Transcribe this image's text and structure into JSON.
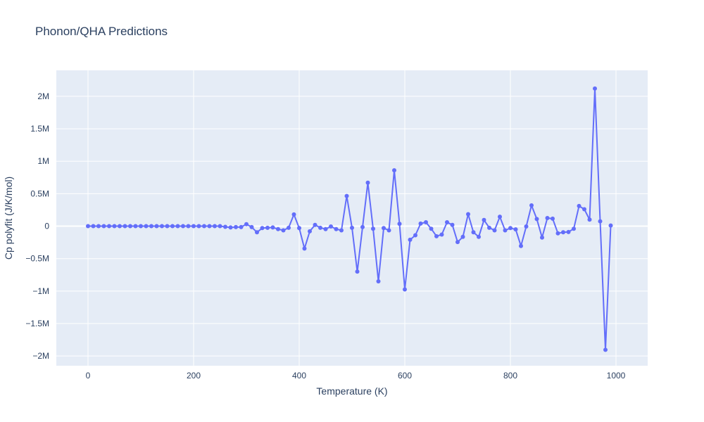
{
  "chart_data": {
    "type": "line",
    "title": "Phonon/QHA Predictions",
    "xlabel": "Temperature (K)",
    "ylabel": "Cp polyfit (J/K/mol)",
    "xlim": [
      -60,
      1060
    ],
    "ylim": [
      -2150000,
      2400000
    ],
    "x_ticks": [
      0,
      200,
      400,
      600,
      800,
      1000
    ],
    "x_tick_labels": [
      "0",
      "200",
      "400",
      "600",
      "800",
      "1000"
    ],
    "y_ticks": [
      -2000000,
      -1500000,
      -1000000,
      -500000,
      0,
      500000,
      1000000,
      1500000,
      2000000
    ],
    "y_tick_labels": [
      "−2M",
      "−1.5M",
      "−1M",
      "−0.5M",
      "0",
      "0.5M",
      "1M",
      "1.5M",
      "2M"
    ],
    "grid": true,
    "marker": "circle",
    "colors": {
      "plot_bg": "#e5ecf6",
      "grid": "#ffffff",
      "line": "#636efa",
      "text": "#2a3f5f"
    },
    "series": [
      {
        "x": [
          0,
          10,
          20,
          30,
          40,
          50,
          60,
          70,
          80,
          90,
          100,
          110,
          120,
          130,
          140,
          150,
          160,
          170,
          180,
          190,
          200,
          210,
          220,
          230,
          240,
          250,
          260,
          270,
          280,
          290,
          300,
          310,
          320,
          330,
          340,
          350,
          360,
          370,
          380,
          390,
          400,
          410,
          420,
          430,
          440,
          450,
          460,
          470,
          480,
          490,
          500,
          510,
          520,
          530,
          540,
          550,
          560,
          570,
          580,
          590,
          600,
          610,
          620,
          630,
          640,
          650,
          660,
          670,
          680,
          690,
          700,
          710,
          720,
          730,
          740,
          750,
          760,
          770,
          780,
          790,
          800,
          810,
          820,
          830,
          840,
          850,
          860,
          870,
          880,
          890,
          900,
          910,
          920,
          930,
          940,
          950,
          960,
          970,
          980,
          990
        ],
        "values": [
          0,
          0,
          0,
          0,
          0,
          0,
          0,
          0,
          0,
          0,
          0,
          0,
          0,
          0,
          0,
          0,
          0,
          0,
          0,
          0,
          0,
          0,
          0,
          0,
          0,
          0,
          -10000,
          -20000,
          -15000,
          -15000,
          30000,
          -15000,
          -95000,
          -30000,
          -25000,
          -20000,
          -45000,
          -65000,
          -25000,
          180000,
          -30000,
          -345000,
          -80000,
          20000,
          -25000,
          -45000,
          -5000,
          -45000,
          -65000,
          465000,
          -25000,
          -700000,
          -15000,
          670000,
          -40000,
          -850000,
          -30000,
          -65000,
          860000,
          35000,
          -975000,
          -210000,
          -140000,
          40000,
          60000,
          -40000,
          -155000,
          -130000,
          60000,
          20000,
          -245000,
          -165000,
          185000,
          -95000,
          -165000,
          95000,
          -25000,
          -65000,
          145000,
          -65000,
          -30000,
          -50000,
          -305000,
          -5000,
          320000,
          110000,
          -175000,
          125000,
          115000,
          -110000,
          -95000,
          -90000,
          -40000,
          310000,
          260000,
          100000,
          2120000,
          75000,
          -1905000,
          10000
        ]
      }
    ]
  }
}
